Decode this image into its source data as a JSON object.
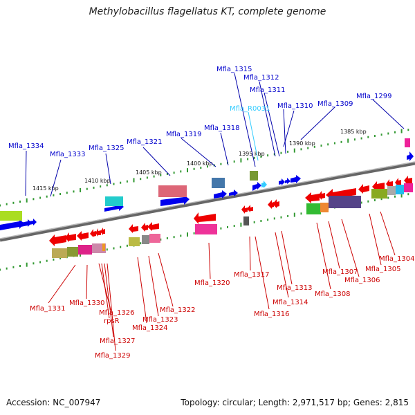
{
  "title": "Methylobacillus flagellatus KT, complete genome",
  "footer": {
    "accession": "Accession: NC_007947",
    "stats": "Topology: circular; Length: 2,971,517 bp; Genes: 2,815"
  },
  "colors": {
    "plus_label": "#0000cc",
    "minus_label": "#cc0000",
    "rna_label": "#33ccff",
    "axis": "#888888",
    "dots": "#339933"
  },
  "scale_ticks": [
    "1415 kbp",
    "1410 kbp",
    "1405 kbp",
    "1400 kbp",
    "1395 kbp",
    "1390 kbp",
    "1385 kbp"
  ],
  "plus_labels": [
    "Mfla_1334",
    "Mfla_1333",
    "Mfla_1325",
    "Mfla_1321",
    "Mfla_1319",
    "Mfla_1318",
    "Mfla_1315",
    "Mfla_1312",
    "Mfla_1311",
    "Mfla_R0031",
    "Mfla_1310",
    "Mfla_1309",
    "Mfla_1299"
  ],
  "minus_labels": [
    "Mfla_1331",
    "Mfla_1330",
    "Mfla_1326",
    "rpsR",
    "Mfla_1327",
    "Mfla_1329",
    "Mfla_1324",
    "Mfla_1323",
    "Mfla_1322",
    "Mfla_1320",
    "Mfla_1317",
    "Mfla_1316",
    "Mfla_1314",
    "Mfla_1313",
    "Mfla_1308",
    "Mfla_1307",
    "Mfla_1306",
    "Mfla_1305",
    "Mfla_1304"
  ]
}
